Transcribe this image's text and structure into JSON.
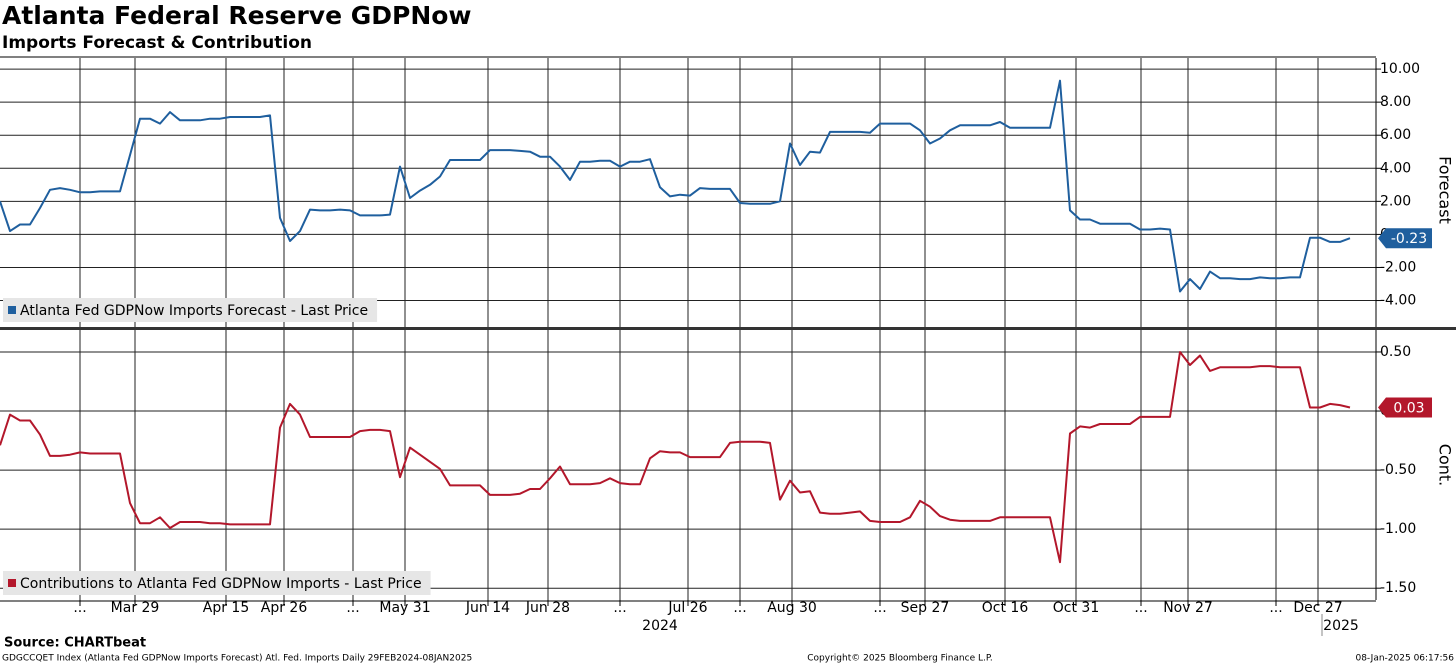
{
  "header": {
    "title": "Atlanta Federal Reserve GDPNow",
    "subtitle": "Imports Forecast & Contribution"
  },
  "footer": {
    "source": "Source: CHARTbeat",
    "description": "GDGCCQET Index (Atlanta Fed GDPNow Imports Forecast) Atl. Fed. Imports  Daily 29FEB2024-08JAN2025",
    "copyright": "Copyright© 2025 Bloomberg Finance L.P.",
    "timestamp": "08-Jan-2025 06:17:56"
  },
  "chart_data": [
    {
      "type": "line",
      "y_axis_label": "Forecast",
      "ylim": [
        -5.6,
        10.67
      ],
      "yticks": [
        {
          "value": 10,
          "label": "10.00"
        },
        {
          "value": 8,
          "label": "8.00"
        },
        {
          "value": 6,
          "label": "6.00"
        },
        {
          "value": 4,
          "label": "4.00"
        },
        {
          "value": 2,
          "label": "2.00"
        },
        0,
        {
          "value": -2,
          "label": "-2.00"
        },
        {
          "value": -4,
          "label": "-4.00"
        }
      ],
      "xlim": [
        0,
        137.6
      ],
      "grid": true,
      "legend": "lower left",
      "series": [
        {
          "name": "Atlanta Fed GDPNow Imports Forecast - Last Price",
          "color": "#1f5f9e",
          "values": [
            2.0,
            0.2,
            0.6,
            0.6,
            1.6,
            2.7,
            2.8,
            2.7,
            2.55,
            2.55,
            2.6,
            2.6,
            2.6,
            4.8,
            7.0,
            7.0,
            6.7,
            7.4,
            6.9,
            6.9,
            6.9,
            7.0,
            7.0,
            7.1,
            7.1,
            7.1,
            7.1,
            7.2,
            1.0,
            -0.4,
            0.2,
            1.5,
            1.45,
            1.45,
            1.5,
            1.45,
            1.15,
            1.15,
            1.15,
            1.2,
            4.1,
            2.2,
            2.65,
            3.0,
            3.5,
            4.5,
            4.5,
            4.5,
            4.5,
            5.1,
            5.1,
            5.1,
            5.05,
            5.0,
            4.7,
            4.7,
            4.1,
            3.3,
            4.4,
            4.4,
            4.45,
            4.45,
            4.1,
            4.4,
            4.4,
            4.55,
            2.85,
            2.3,
            2.4,
            2.35,
            2.8,
            2.75,
            2.75,
            2.75,
            1.9,
            1.85,
            1.85,
            1.85,
            2.0,
            5.5,
            4.2,
            5.0,
            4.95,
            6.2,
            6.2,
            6.2,
            6.2,
            6.15,
            6.7,
            6.7,
            6.7,
            6.7,
            6.3,
            5.5,
            5.8,
            6.3,
            6.6,
            6.6,
            6.6,
            6.6,
            6.8,
            6.45,
            6.45,
            6.45,
            6.45,
            6.45,
            9.3,
            1.45,
            0.9,
            0.9,
            0.65,
            0.65,
            0.65,
            0.65,
            0.3,
            0.3,
            0.35,
            0.3,
            -3.45,
            -2.7,
            -3.3,
            -2.25,
            -2.65,
            -2.65,
            -2.7,
            -2.7,
            -2.6,
            -2.65,
            -2.65,
            -2.6,
            -2.6,
            -0.2,
            -0.2,
            -0.45,
            -0.45,
            -0.23
          ]
        }
      ]
    },
    {
      "type": "line",
      "y_axis_label": "Cont.",
      "ylim": [
        -1.6,
        0.686
      ],
      "yticks": [
        {
          "value": 0.5,
          "label": "0.50"
        },
        0,
        {
          "value": -0.5,
          "label": "-0.50"
        },
        {
          "value": -1,
          "label": "-1.00"
        },
        {
          "value": -1.5,
          "label": "-1.50"
        }
      ],
      "xlim": [
        0,
        137.6
      ],
      "xticks": [
        {
          "value": 8.0,
          "label": "..."
        },
        {
          "value": 13.5,
          "label": "Mar 29"
        },
        {
          "value": 22.6,
          "label": "Apr 15"
        },
        {
          "value": 28.4,
          "label": "Apr 26"
        },
        {
          "value": 35.3,
          "label": "..."
        },
        {
          "value": 40.5,
          "label": "May 31"
        },
        {
          "value": 48.8,
          "label": "Jun 14"
        },
        {
          "value": 54.8,
          "label": "Jun 28"
        },
        {
          "value": 62.0,
          "label": "..."
        },
        {
          "value": 68.8,
          "label": "Jul 26"
        },
        {
          "value": 74.0,
          "label": "..."
        },
        {
          "value": 79.2,
          "label": "Aug 30"
        },
        {
          "value": 88.0,
          "label": "..."
        },
        {
          "value": 92.5,
          "label": "Sep 27"
        },
        {
          "value": 100.5,
          "label": "Oct 16"
        },
        {
          "value": 107.6,
          "label": "Oct 31"
        },
        {
          "value": 114.1,
          "label": "..."
        },
        {
          "value": 118.8,
          "label": "Nov 27"
        },
        {
          "value": 127.6,
          "label": "..."
        },
        {
          "value": 131.8,
          "label": "Dec 27"
        }
      ],
      "year_labels": [
        {
          "value": 66.0,
          "label": "2024"
        },
        {
          "value": 134.1,
          "label": "2025"
        }
      ],
      "grid": true,
      "legend": "lower left",
      "series": [
        {
          "name": "Contributions to Atlanta Fed GDPNow Imports - Last Price",
          "color": "#b3172b",
          "values": [
            -0.29,
            -0.03,
            -0.08,
            -0.08,
            -0.2,
            -0.38,
            -0.38,
            -0.37,
            -0.35,
            -0.36,
            -0.36,
            -0.36,
            -0.36,
            -0.78,
            -0.95,
            -0.95,
            -0.9,
            -0.99,
            -0.94,
            -0.94,
            -0.94,
            -0.95,
            -0.95,
            -0.96,
            -0.96,
            -0.96,
            -0.96,
            -0.96,
            -0.14,
            0.06,
            -0.03,
            -0.22,
            -0.22,
            -0.22,
            -0.22,
            -0.22,
            -0.17,
            -0.16,
            -0.16,
            -0.17,
            -0.56,
            -0.31,
            -0.37,
            -0.43,
            -0.49,
            -0.63,
            -0.63,
            -0.63,
            -0.63,
            -0.71,
            -0.71,
            -0.71,
            -0.7,
            -0.66,
            -0.66,
            -0.57,
            -0.47,
            -0.62,
            -0.62,
            -0.62,
            -0.61,
            -0.57,
            -0.61,
            -0.62,
            -0.62,
            -0.4,
            -0.34,
            -0.35,
            -0.35,
            -0.39,
            -0.39,
            -0.39,
            -0.39,
            -0.27,
            -0.26,
            -0.26,
            -0.26,
            -0.27,
            -0.75,
            -0.59,
            -0.69,
            -0.68,
            -0.86,
            -0.87,
            -0.87,
            -0.86,
            -0.85,
            -0.93,
            -0.94,
            -0.94,
            -0.94,
            -0.9,
            -0.76,
            -0.81,
            -0.89,
            -0.92,
            -0.93,
            -0.93,
            -0.93,
            -0.93,
            -0.9,
            -0.9,
            -0.9,
            -0.9,
            -0.9,
            -0.9,
            -1.28,
            -0.19,
            -0.13,
            -0.14,
            -0.11,
            -0.11,
            -0.11,
            -0.11,
            -0.05,
            -0.05,
            -0.05,
            -0.05,
            0.5,
            0.39,
            0.47,
            0.34,
            0.37,
            0.37,
            0.37,
            0.37,
            0.38,
            0.38,
            0.37,
            0.37,
            0.37,
            0.03,
            0.03,
            0.06,
            0.05,
            0.03
          ]
        }
      ]
    }
  ]
}
